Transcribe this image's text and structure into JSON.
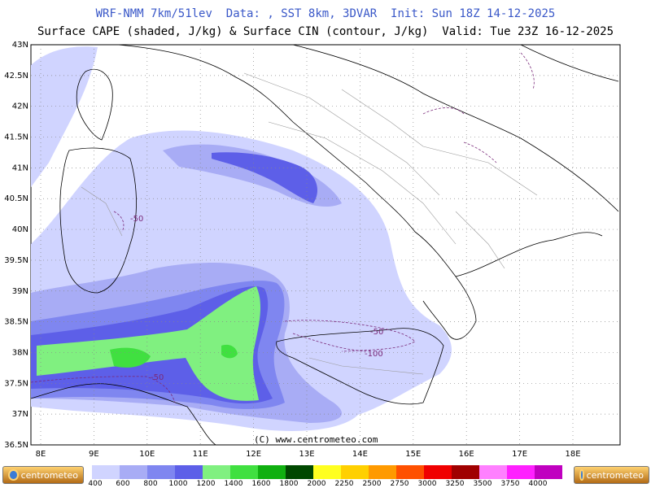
{
  "titles": {
    "line1": "WRF-NMM 7km/51lev  Data: , SST 8km, 3DVAR  Init: Sun 18Z 14-12-2025",
    "line2": "Surface CAPE (shaded, J/kg) & Surface CIN (contour, J/kg)  Valid: Tue 23Z 16-12-2025"
  },
  "map": {
    "lat_labels": [
      "43N",
      "42.5N",
      "42N",
      "41.5N",
      "41N",
      "40.5N",
      "40N",
      "39.5N",
      "39N",
      "38.5N",
      "38N",
      "37.5N",
      "37N",
      "36.5N"
    ],
    "lon_labels": [
      "8E",
      "9E",
      "10E",
      "11E",
      "12E",
      "13E",
      "14E",
      "15E",
      "16E",
      "17E",
      "18E"
    ],
    "credit": "(C) www.centrometeo.com",
    "cin_labels": [
      "-50",
      "-50",
      "-100",
      "-50"
    ]
  },
  "legend": {
    "logo_left": "centrometeo",
    "logo_right": "centrometeo",
    "ticks": [
      "400",
      "600",
      "800",
      "1000",
      "1200",
      "1400",
      "1600",
      "1800",
      "2000",
      "2250",
      "2500",
      "2750",
      "3000",
      "3250",
      "3500",
      "3750",
      "4000"
    ],
    "colors": [
      "#d0d4ff",
      "#a8acf5",
      "#7f86f0",
      "#5d5fe8",
      "#80f080",
      "#40e040",
      "#10b010",
      "#004800",
      "#ffff20",
      "#ffd000",
      "#ff9a00",
      "#ff5000",
      "#f00000",
      "#a00000",
      "#ff80ff",
      "#ff20ff",
      "#c000c0"
    ]
  }
}
